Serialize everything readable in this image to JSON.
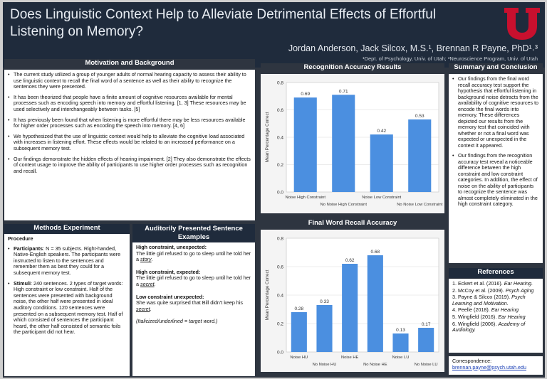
{
  "header": {
    "title_line1": "Does Linguistic Context Help to Alleviate Detrimental Effects of Effortful",
    "title_line2": "Listening on Memory?",
    "authors": "Jordan Anderson, Jack Silcox, M.S.¹, Brennan R Payne, PhD¹˒³",
    "affiliations": "¹Dept. of Psychology, Univ. of Utah;  ³Neuroscience Program, Univ. of Utah"
  },
  "motivation": {
    "heading": "Motivation and Background",
    "bullets": [
      "The current study utilized a group of younger adults of normal hearing capacity to assess their ability to use linguistic context to recall the final word of a sentence as well as their ability to recognize the sentences they were presented.",
      "It has been theorized that people have a finite amount of cognitive resources available for mental processes such as encoding speech into memory and effortful listening. [1, 3] These resources may be used selectively and interchangeably between tasks. [5]",
      "It has previously been found that when listening is more effortful there may be less resources available for higher order processes such as encoding the speech into memory. [4, 6]",
      "We hypothesized that the use of linguistic context would help to alleviate the cognitive load associated with increases in listening effort. These effects would be related to an increased performance on a subsequent memory test.",
      "Our findings demonstrate the hidden effects of hearing impairment. [2] They also demonstrate the effects of context usage to improve the ability of participants to use higher order processes such as recognition and recall."
    ]
  },
  "methods": {
    "heading": "Methods Experiment",
    "subheading": "Procedure",
    "participants_label": "Participants",
    "participants_text": ": N = 35 subjects. Right-handed, Native-English speakers. The participants were instructed to listen to the sentences and remember them as best they could for a subsequent memory test.",
    "stimuli_label": "Stimuli",
    "stimuli_text": ": 240 sentences. 2 types of target words: High constraint or low constraint. Half of the sentences were presented with background noise, the other half were presented in ideal auditory conditions. 120 sentences were presented on a subsequent memory test. Half of which consisted of sentences the participant heard, the other half consisted of semantic foils the participant did not hear."
  },
  "examples": {
    "heading": "Auditorily Presented Sentence Examples",
    "items": [
      {
        "label": "High constraint, unexpected:",
        "text": "The little girl refused to go to sleep until he told her a ",
        "target": "story",
        "end": "."
      },
      {
        "label": "High constraint, expected:",
        "text": "The little girl refused to go to sleep until he told her a ",
        "target": "secret",
        "end": "."
      },
      {
        "label": "Low constraint unexpected:",
        "text": "She was quite surprised that Bill didn't keep his ",
        "target": "secret",
        "end": "."
      }
    ],
    "note": "(Italicized/underlined = target word.)"
  },
  "recognition_chart": {
    "heading": "Recognition Accuracy Results"
  },
  "recall_chart": {
    "heading": "Final Word Recall Accuracy"
  },
  "chart_data": [
    {
      "type": "bar",
      "title": "Recognition Accuracy Results",
      "ylabel": "Mean Percentage Correct",
      "xlabel": "",
      "ylim": [
        0,
        0.8
      ],
      "yticks": [
        "0.0",
        "0.2",
        "0.4",
        "0.6",
        "0.8"
      ],
      "categories": [
        "Noise High Constraint",
        "No Noise High Constraint",
        "Noise Low Constraint",
        "No Noise Low Constraint"
      ],
      "values": [
        0.69,
        0.71,
        0.42,
        0.53
      ],
      "labels": [
        "0.69",
        "0.71",
        "0.42",
        "0.53"
      ],
      "color": "#4b8fe0"
    },
    {
      "type": "bar",
      "title": "Final Word Recall Accuracy",
      "ylabel": "Mean Percentage Correct",
      "xlabel": "",
      "ylim": [
        0,
        0.8
      ],
      "yticks": [
        "0.0",
        "0.2",
        "0.4",
        "0.6",
        "0.8"
      ],
      "categories": [
        "Noise HU",
        "No Noise HU",
        "Noise HE",
        "No Noise HE",
        "Noise LU",
        "No Noise LU"
      ],
      "values": [
        0.28,
        0.33,
        0.62,
        0.68,
        0.13,
        0.17
      ],
      "labels": [
        "0.28",
        "0.33",
        "0.62",
        "0.68",
        "0.13",
        "0.17"
      ],
      "color": "#4b8fe0"
    }
  ],
  "summary": {
    "heading": "Summary and Conclusion",
    "bullets": [
      "Our findings from the final word recall accuracy test support the hypothesis that effortful listening in background noise detracts from the availability of cognitive resources to encode the final words into memory. These differences depicted our results from the memory test that coincided with whether or not a final word was expected or unexpected in the context it appeared.",
      "Our findings from the recognition accuracy test reveal a noticeable difference between the high constraint and low constraint categories. In addition, the effect of noise on the ability of participants to recognize the sentence was almost completely eliminated in the high constraint category."
    ]
  },
  "references": {
    "heading": "References",
    "items": [
      {
        "text": "1. Eckert et al. (2016). ",
        "italic": "Ear Hearing."
      },
      {
        "text": "2. McCoy et al. (2009). ",
        "italic": "Psych Aging"
      },
      {
        "text": "3. Payne & Silcox (2019). ",
        "italic": "Psych Learning and Motivation."
      },
      {
        "text": "4. Peelle (2018). ",
        "italic": "Ear Hearing"
      },
      {
        "text": "5. Wingfield (2016). ",
        "italic": "Ear Hearing"
      },
      {
        "text": "6. Wingfield (2006). ",
        "italic": "Academy of Audiology."
      }
    ]
  },
  "correspondence": {
    "label": "Correspondence:",
    "email": "brennan.payne@psych.utah.edu"
  },
  "colors": {
    "background": "#2e3540",
    "header": "#1f2b3c",
    "bar": "#4b8fe0",
    "logo_red": "#c8102e"
  },
  "logo_icon": "university-u-logo"
}
